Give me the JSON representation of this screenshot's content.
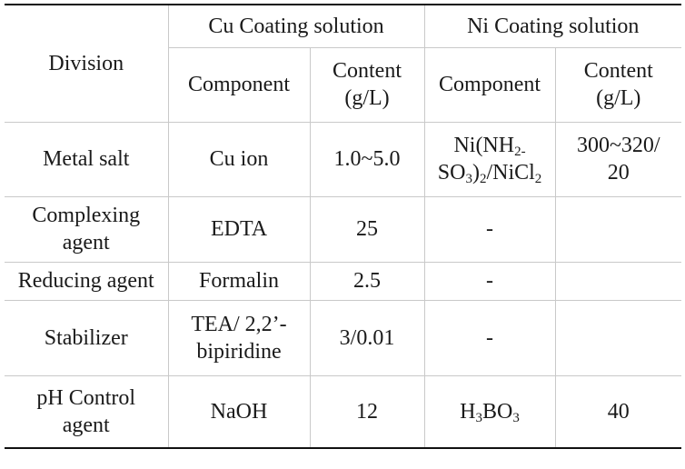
{
  "table": {
    "header": {
      "division": "Division",
      "cu_group": "Cu Coating solution",
      "ni_group": "Ni Coating solution",
      "component": "Component",
      "content_line1": "Content",
      "content_line2": "(g/L)"
    },
    "rows": [
      {
        "division": [
          "Metal salt"
        ],
        "cu_component": [
          "Cu ion"
        ],
        "cu_content": "1.0~5.0",
        "ni_content": [
          "300~320/",
          "20"
        ]
      },
      {
        "division": [
          "Complexing",
          "agent"
        ],
        "cu_component": [
          "EDTA"
        ],
        "cu_content": "25",
        "ni_component": "-",
        "ni_content": [
          ""
        ]
      },
      {
        "division": [
          "Reducing agent"
        ],
        "cu_component": [
          "Formalin"
        ],
        "cu_content": "2.5",
        "ni_component": "-",
        "ni_content": [
          ""
        ]
      },
      {
        "division": [
          "Stabilizer"
        ],
        "cu_component": [
          "TEA/ 2,2’-",
          "bipiridine"
        ],
        "cu_content": "3/0.01",
        "ni_component": "-",
        "ni_content": [
          ""
        ]
      },
      {
        "division": [
          "pH Control",
          "agent"
        ],
        "cu_component": [
          "NaOH"
        ],
        "cu_content": "12",
        "ni_content": [
          "40"
        ]
      }
    ],
    "formulas": {
      "ni_salt": {
        "l1a": "Ni(NH",
        "l1s": "2-",
        "l2a": "SO",
        "l2s1": "3",
        "l2b": ")",
        "l2s2": "2",
        "l2c": "/NiCl",
        "l2s3": "2"
      },
      "boric_acid": {
        "a": "H",
        "s1": "3",
        "b": "BO",
        "s2": "3"
      }
    }
  }
}
